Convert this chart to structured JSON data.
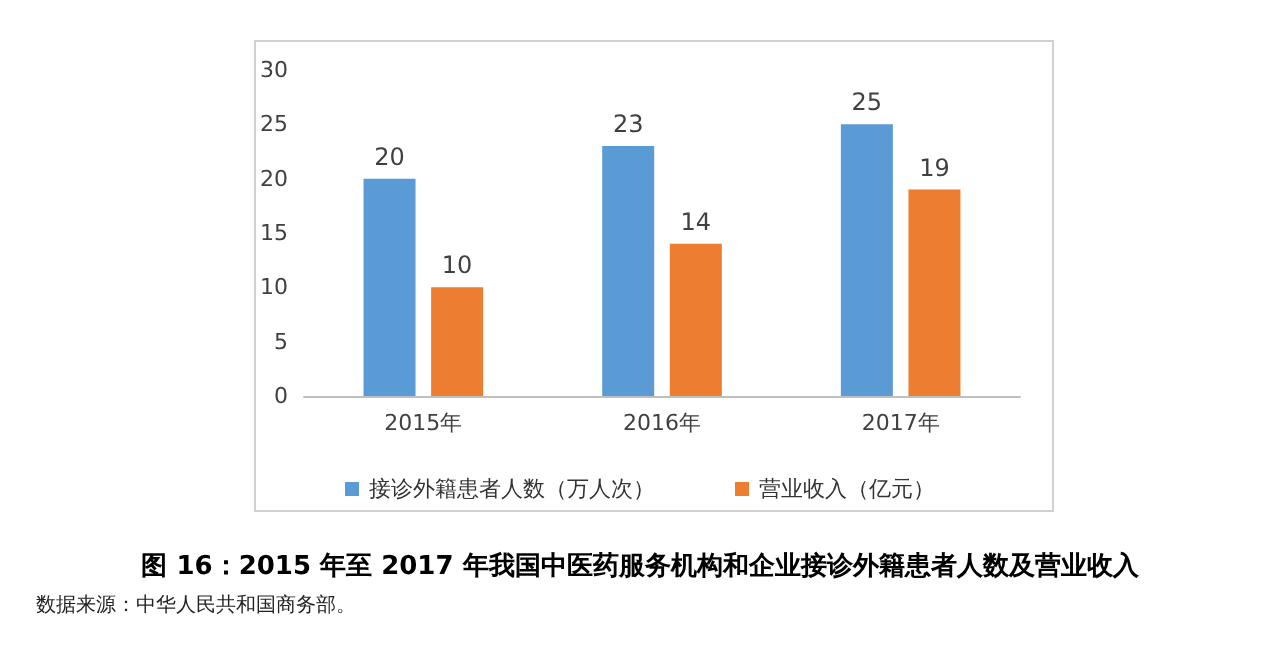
{
  "chart_data": {
    "type": "bar",
    "title": "图 16：2015 年至 2017 年我国中医药服务机构和企业接诊外籍患者人数及营业收入",
    "categories": [
      "2015年",
      "2016年",
      "2017年"
    ],
    "series": [
      {
        "name": "接诊外籍患者人数（万人次）",
        "color": "#5b9bd5",
        "values": [
          20,
          23,
          25
        ]
      },
      {
        "name": "营业收入（亿元）",
        "color": "#ed7d31",
        "values": [
          10,
          14,
          19
        ]
      }
    ],
    "ylim": [
      0,
      30
    ],
    "yticks": [
      0,
      5,
      10,
      15,
      20,
      25,
      30
    ],
    "grid": false,
    "legend": "bottom",
    "data_labels": true,
    "annotations": [
      "数据来源：中华人民共和国商务部。"
    ]
  }
}
